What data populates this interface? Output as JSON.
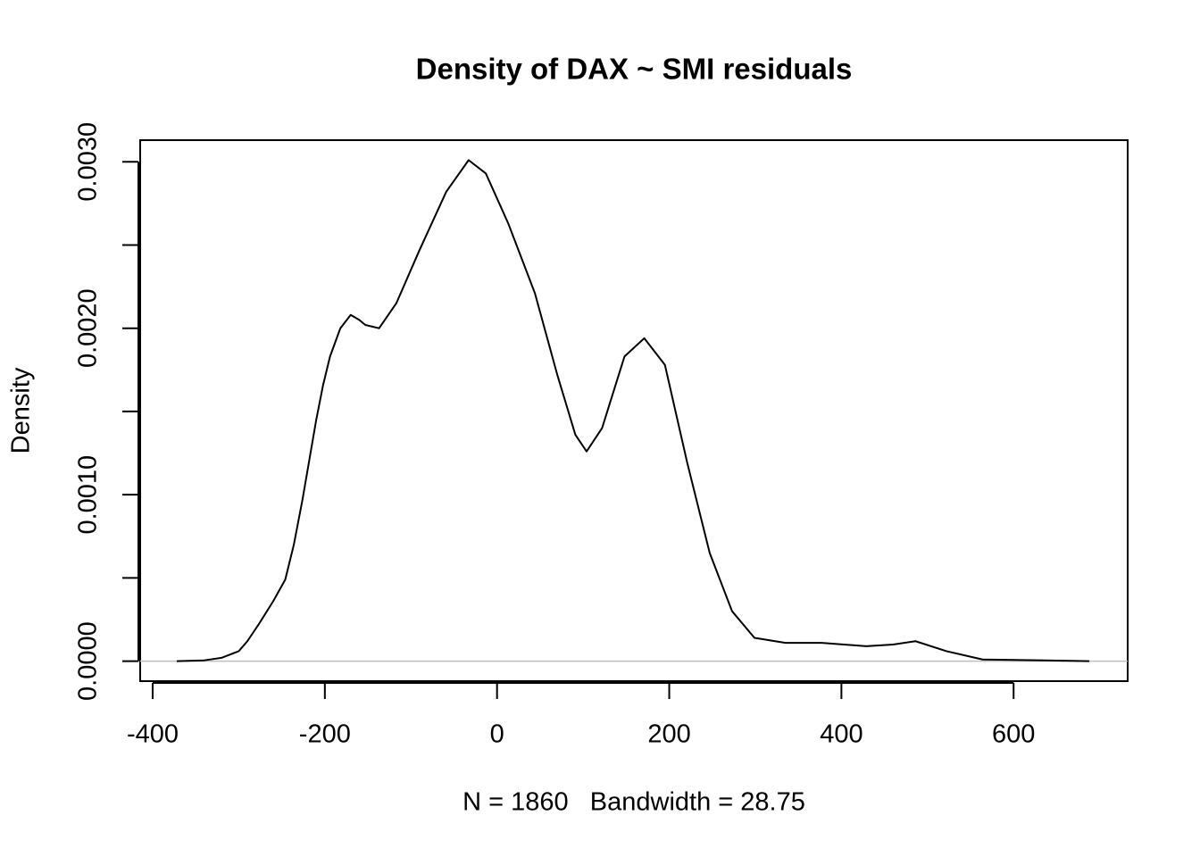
{
  "chart_data": {
    "type": "line",
    "title": "Density of DAX ~ SMI residuals",
    "xlabel": "N = 1860   Bandwidth = 28.75",
    "ylabel": "Density",
    "x": [
      -372,
      -340,
      -320,
      -300,
      -290,
      -277,
      -260,
      -246,
      -236,
      -226,
      -218,
      -210,
      -202,
      -194,
      -182,
      -170,
      -160,
      -153,
      -137,
      -117,
      -90,
      -59,
      -33,
      -13,
      13,
      44,
      70,
      91,
      104,
      122,
      148,
      171,
      195,
      221,
      247,
      273,
      299,
      335,
      377,
      429,
      460,
      486,
      522,
      564,
      636,
      688
    ],
    "series": [
      {
        "name": "density",
        "color": "#000000",
        "values": [
          0,
          5e-06,
          2e-05,
          6e-05,
          0.00012,
          0.00022,
          0.00036,
          0.00049,
          0.0007,
          0.00097,
          0.00121,
          0.00145,
          0.00166,
          0.00183,
          0.002,
          0.00208,
          0.00205,
          0.00202,
          0.002,
          0.00215,
          0.00247,
          0.00282,
          0.00301,
          0.00293,
          0.00263,
          0.00221,
          0.00172,
          0.00136,
          0.00126,
          0.0014,
          0.00183,
          0.00194,
          0.00178,
          0.00119,
          0.00065,
          0.0003,
          0.00014,
          0.00011,
          0.00011,
          9e-05,
          0.0001,
          0.00012,
          6e-05,
          1e-05,
          5e-06,
          0
        ]
      }
    ],
    "xlim": [
      -414.5,
      732.5
    ],
    "ylim": [
      -0.00012,
      0.00313
    ],
    "xticks": [
      -400,
      -200,
      0,
      200,
      400,
      600
    ],
    "yticks": [
      {
        "value": 0,
        "label": "0.0000"
      },
      {
        "value": 0.001,
        "label": "0.0010"
      },
      {
        "value": 0.002,
        "label": "0.0020"
      },
      {
        "value": 0.003,
        "label": "0.0030"
      }
    ],
    "yminor_ticks": [
      0.0005,
      0.0015,
      0.0025
    ],
    "zero_line_color": "#bebebe"
  }
}
